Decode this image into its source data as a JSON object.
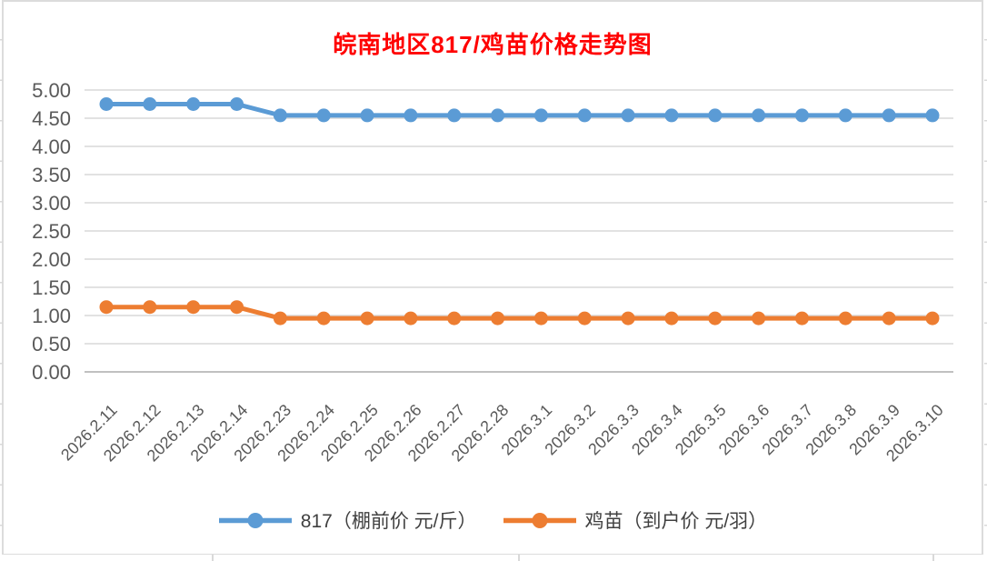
{
  "chart_data": {
    "type": "line",
    "title": "皖南地区817/鸡苗价格走势图",
    "title_color": "#FF0000",
    "categories": [
      "2026.2.11",
      "2026.2.12",
      "2026.2.13",
      "2026.2.14",
      "2026.2.23",
      "2026.2.24",
      "2026.2.25",
      "2026.2.26",
      "2026.2.27",
      "2026.2.28",
      "2026.3.1",
      "2026.3.2",
      "2026.3.3",
      "2026.3.4",
      "2026.3.5",
      "2026.3.6",
      "2026.3.7",
      "2026.3.8",
      "2026.3.9",
      "2026.3.10"
    ],
    "series": [
      {
        "name": "817（棚前价 元/斤）",
        "color": "#5B9BD5",
        "values": [
          4.75,
          4.75,
          4.75,
          4.75,
          4.55,
          4.55,
          4.55,
          4.55,
          4.55,
          4.55,
          4.55,
          4.55,
          4.55,
          4.55,
          4.55,
          4.55,
          4.55,
          4.55,
          4.55,
          4.55
        ]
      },
      {
        "name": "鸡苗（到户价 元/羽）",
        "color": "#ED7D31",
        "values": [
          1.15,
          1.15,
          1.15,
          1.15,
          0.95,
          0.95,
          0.95,
          0.95,
          0.95,
          0.95,
          0.95,
          0.95,
          0.95,
          0.95,
          0.95,
          0.95,
          0.95,
          0.95,
          0.95,
          0.95
        ]
      }
    ],
    "y_axis": {
      "min": 0,
      "max": 5,
      "step": 0.5,
      "tick_labels": [
        "5.00",
        "4.50",
        "4.00",
        "3.50",
        "3.00",
        "2.50",
        "2.00",
        "1.50",
        "1.00",
        "0.50",
        "0.00"
      ],
      "label_color": "#595959"
    },
    "x_axis": {
      "label_rotation_deg": 45,
      "label_color": "#595959"
    },
    "grid": true,
    "gridline_color": "#D9D9D9",
    "baseline_color": "#C0C0C0",
    "legend_position": "bottom"
  }
}
